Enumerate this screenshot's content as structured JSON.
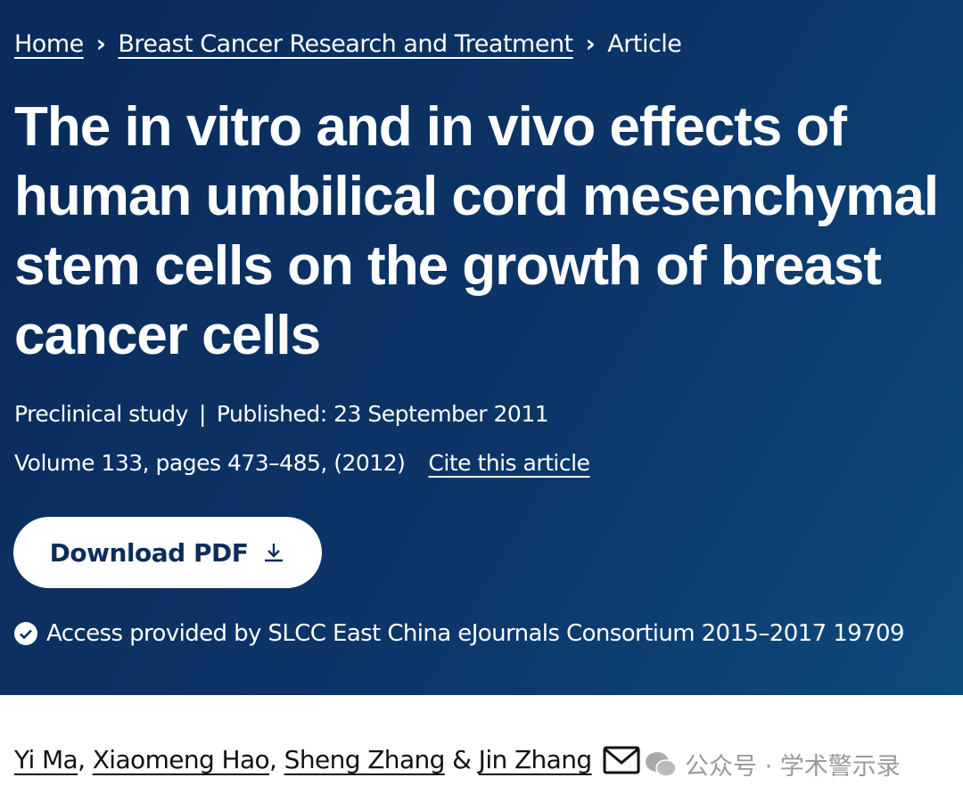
{
  "breadcrumb": [
    "Home",
    "Breast Cancer Research and Treatment",
    "Article"
  ],
  "title": "The in vitro and in vivo effects of human umbilical cord mesenchymal stem cells on the growth of breast cancer cells",
  "article_type": "Preclinical study",
  "meta_separator": "|",
  "published": "Published: 23 September 2011",
  "citation": "Volume 133, pages 473–485, (2012)",
  "cite_link": "Cite this article",
  "download_button": "Download PDF",
  "access": "Access provided by SLCC East China eJournals Consortium 2015–2017 19709",
  "authors": [
    "Yi Ma",
    "Xiaomeng Hao",
    "Sheng Zhang",
    "Jin Zhang"
  ],
  "author_separators": [
    ", ",
    ", ",
    " & "
  ],
  "watermark": "公众号 · 学术警示录"
}
